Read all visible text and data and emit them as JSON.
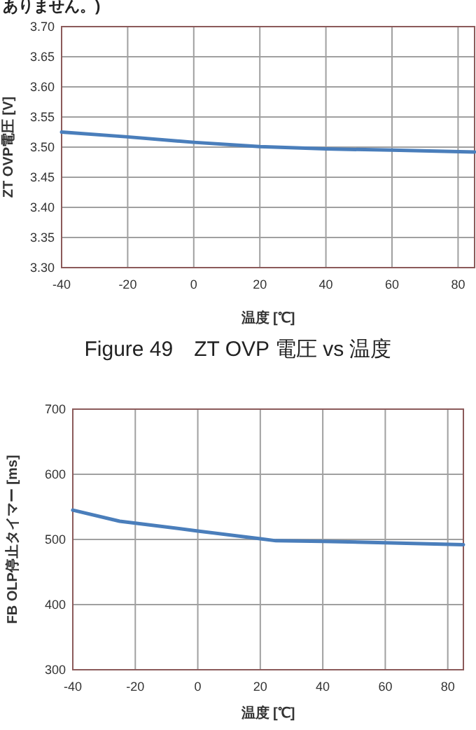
{
  "chart_data": [
    {
      "type": "line",
      "title": "Figure 49　ZT OVP 電圧  vs  温度",
      "annotations": [
        "ありません。)"
      ],
      "xlabel": "温度 [℃]",
      "ylabel": "ZT OVP電圧 [V]",
      "x": [
        -40,
        -20,
        0,
        20,
        40,
        60,
        85
      ],
      "series": [
        {
          "color": "#4a7ebb",
          "values": [
            3.525,
            3.517,
            3.508,
            3.501,
            3.497,
            3.495,
            3.492
          ]
        }
      ],
      "xlim": [
        -40,
        85
      ],
      "xticks": [
        -40,
        -20,
        0,
        20,
        40,
        60,
        80
      ],
      "ylim": [
        3.3,
        3.7
      ],
      "yticks": [
        {
          "value": 3.3,
          "label": "3.30"
        },
        {
          "value": 3.35,
          "label": "3.35"
        },
        {
          "value": 3.4,
          "label": "3.40"
        },
        {
          "value": 3.45,
          "label": "3.45"
        },
        {
          "value": 3.5,
          "label": "3.50"
        },
        {
          "value": 3.55,
          "label": "3.55"
        },
        {
          "value": 3.6,
          "label": "3.60"
        },
        {
          "value": 3.65,
          "label": "3.65"
        },
        {
          "value": 3.7,
          "label": "3.70"
        }
      ],
      "grid": true
    },
    {
      "type": "line",
      "xlabel": "温度 [℃]",
      "ylabel": "FB OLP停止タイマー [ms]",
      "x": [
        -40,
        -25,
        -20,
        0,
        20,
        25,
        40,
        60,
        85
      ],
      "series": [
        {
          "color": "#4a7ebb",
          "values": [
            545,
            528,
            525,
            513,
            501,
            498,
            497,
            495,
            492
          ]
        }
      ],
      "xlim": [
        -40,
        85
      ],
      "xticks": [
        -40,
        -20,
        0,
        20,
        40,
        60,
        80
      ],
      "ylim": [
        300,
        700
      ],
      "yticks": [
        300,
        400,
        500,
        600,
        700
      ],
      "grid": true
    }
  ]
}
